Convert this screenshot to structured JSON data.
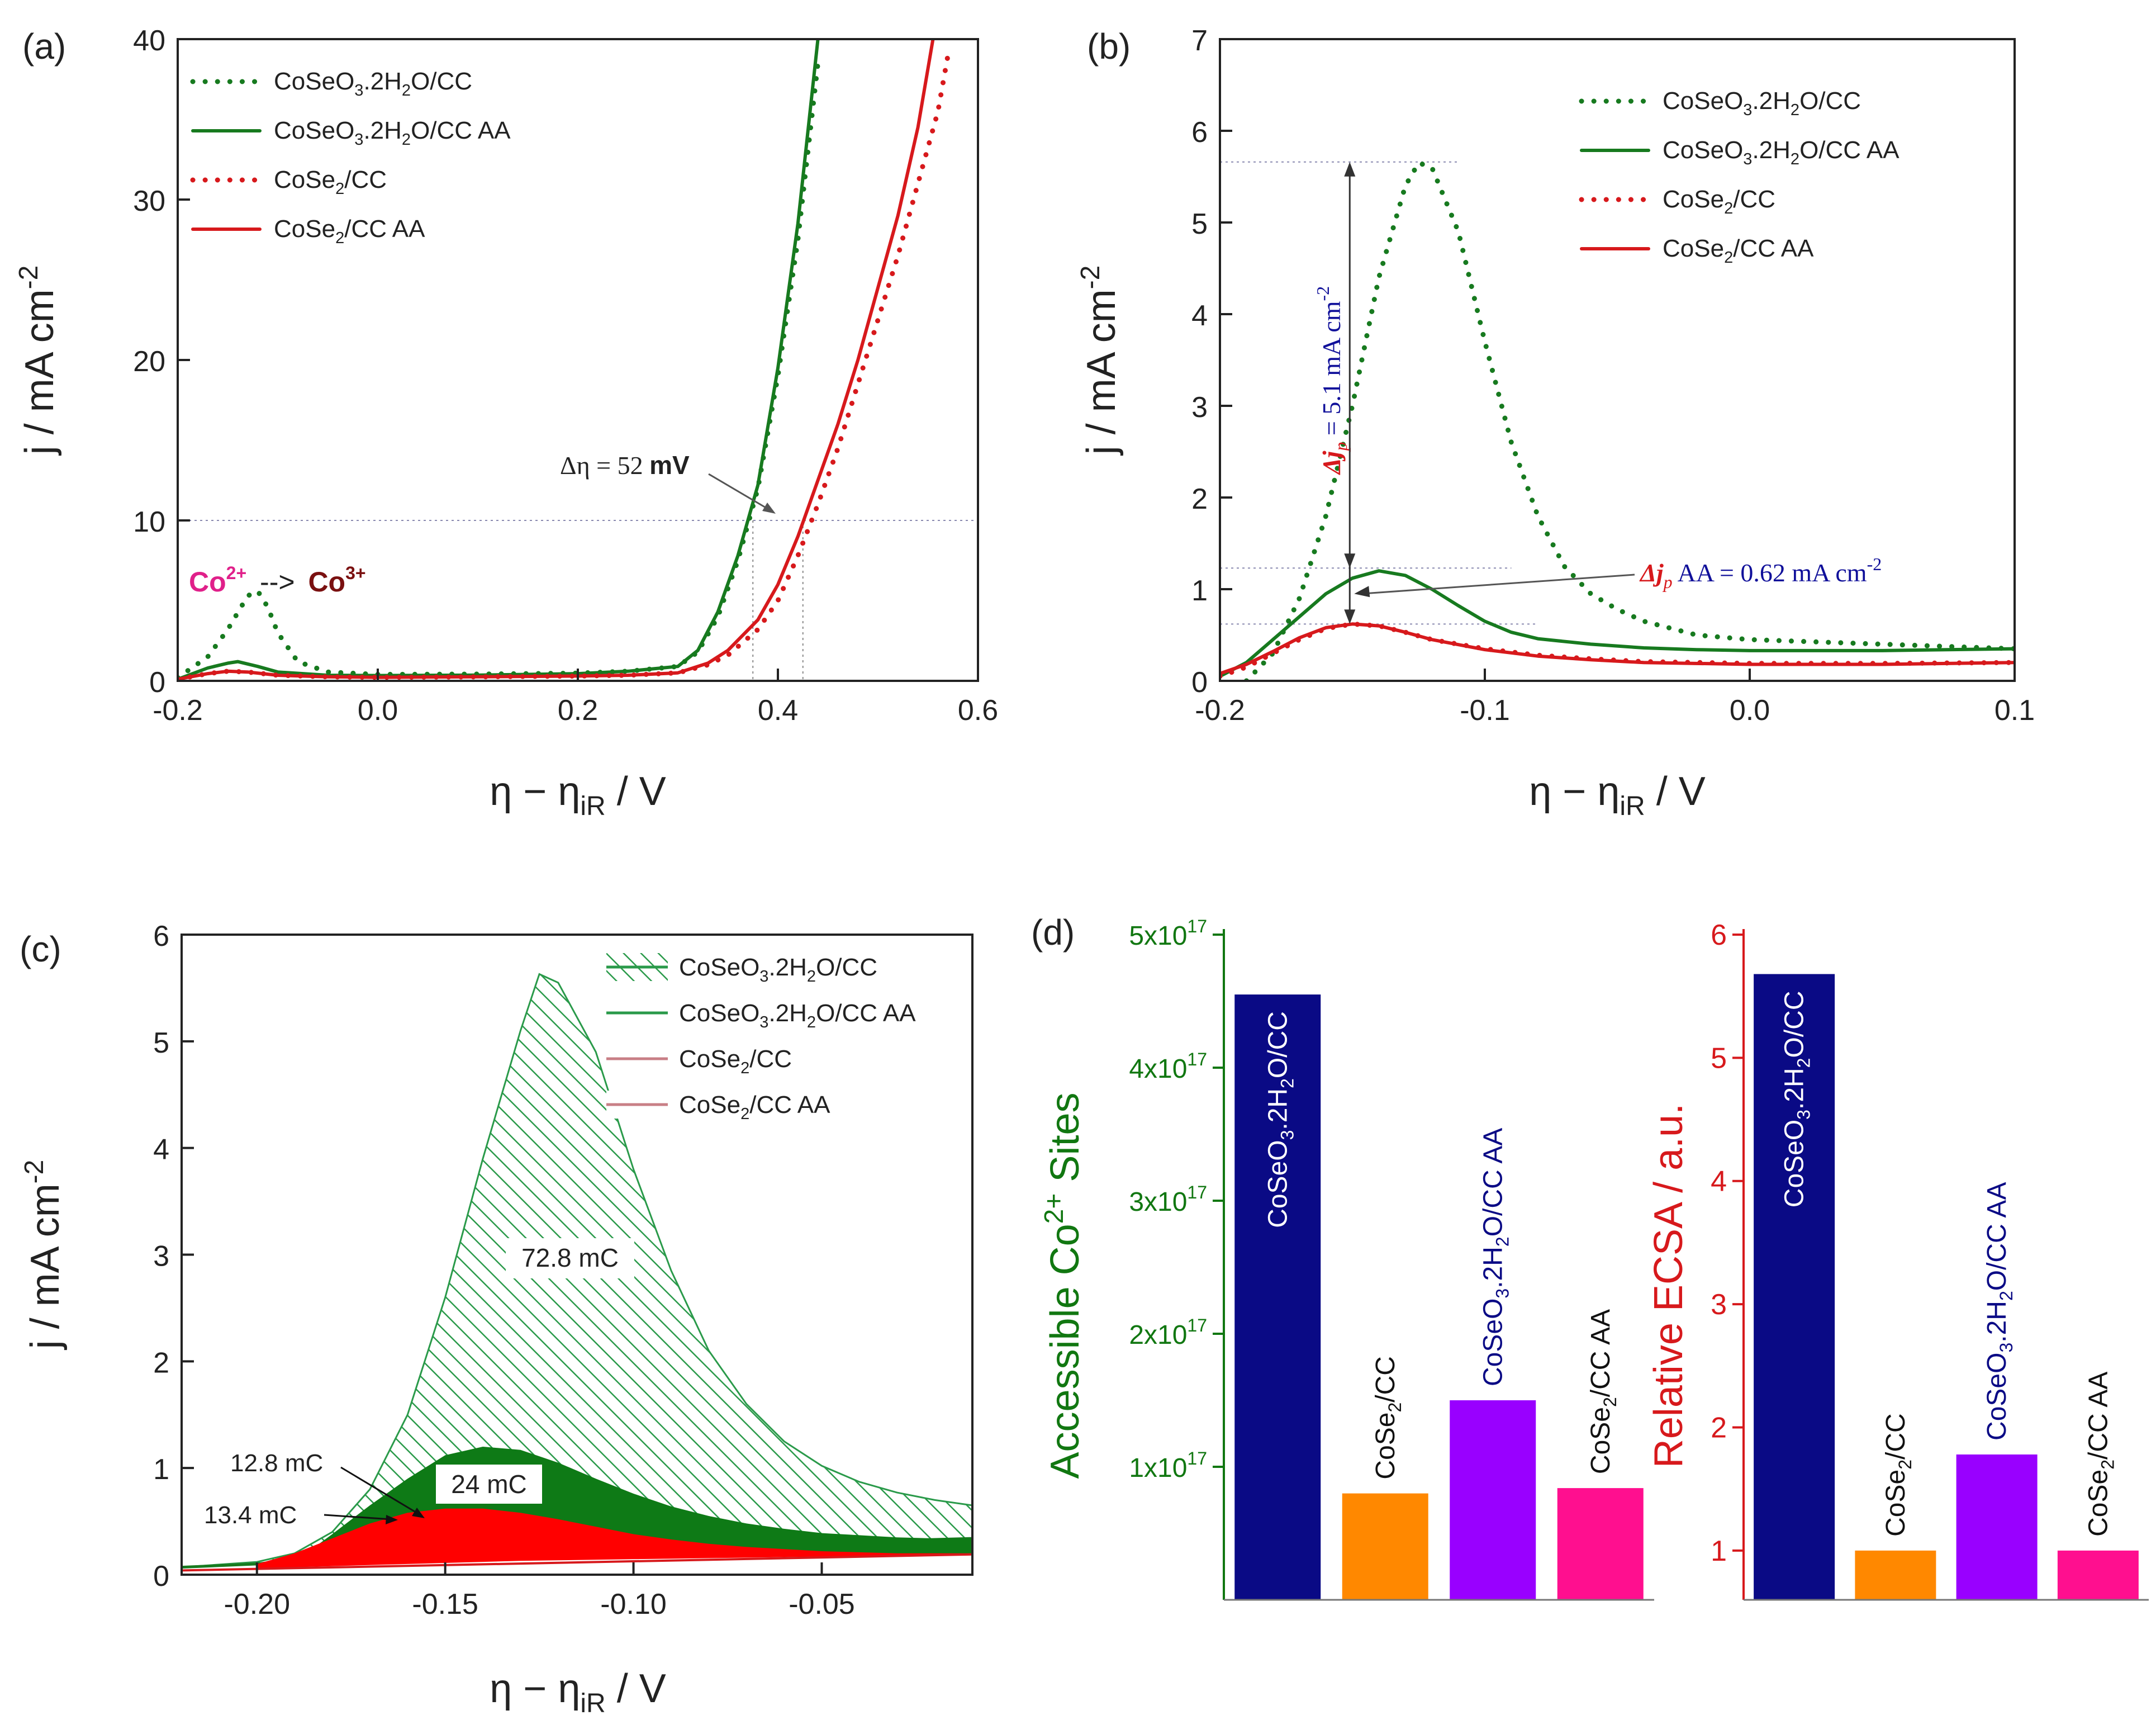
{
  "colors": {
    "green": "#177a1f",
    "red": "#d7191c",
    "navy": "#0a0a85",
    "purple": "#9900ff",
    "orange": "#ff8800",
    "pink": "#ff0f8f",
    "magenta": "#e0208a",
    "maroon": "#7a1010",
    "bar_green_axis": "#117711",
    "blue_text": "#10109a",
    "fill_red": "#ff0000",
    "fill_green": "#0e7a16",
    "hatch_green": "#2a9a4a",
    "legend_red_light": "#c87f86"
  },
  "chart_data": [
    {
      "type": "line",
      "panel_label": "(a)",
      "xlabel_main": "η − η",
      "xlabel_sub": "iR",
      "xlabel_unit": " / V",
      "ylabel": "j / mA cm",
      "ylabel_sup": "-2",
      "xlim": [
        -0.2,
        0.6
      ],
      "ylim": [
        0,
        40
      ],
      "xticks": [
        -0.2,
        0.0,
        0.2,
        0.4,
        0.6
      ],
      "xtick_labels": [
        "-0.2",
        "0.0",
        "0.2",
        "0.4",
        "0.6"
      ],
      "yticks": [
        0,
        10,
        20,
        30,
        40
      ],
      "ytick_labels": [
        "0",
        "10",
        "20",
        "30",
        "40"
      ],
      "legend_placement": "top-left",
      "series": [
        {
          "name": "CoSeO3·2H2O/CC",
          "legend": [
            "CoSeO",
            "3",
            ".2H",
            "2",
            "O/CC"
          ],
          "color": "green",
          "style": "dotted",
          "x": [
            -0.2,
            -0.17,
            -0.15,
            -0.13,
            -0.12,
            -0.11,
            -0.1,
            -0.08,
            -0.05,
            0.0,
            0.1,
            0.2,
            0.25,
            0.3,
            0.32,
            0.34,
            0.36,
            0.38,
            0.4,
            0.42,
            0.44
          ],
          "y": [
            0.2,
            1.5,
            3.2,
            5.3,
            5.6,
            4.6,
            3.0,
            1.2,
            0.55,
            0.4,
            0.42,
            0.48,
            0.6,
            0.9,
            1.8,
            4.0,
            7.5,
            12.0,
            19.0,
            27.5,
            38.5
          ]
        },
        {
          "name": "CoSeO3·2H2O/CC AA",
          "legend": [
            "CoSeO",
            "3",
            ".2H",
            "2",
            "O/CC AA"
          ],
          "color": "green",
          "style": "solid",
          "x": [
            -0.2,
            -0.17,
            -0.15,
            -0.14,
            -0.12,
            -0.1,
            -0.05,
            0.0,
            0.1,
            0.2,
            0.25,
            0.3,
            0.32,
            0.34,
            0.36,
            0.38,
            0.4,
            0.42,
            0.44
          ],
          "y": [
            0.1,
            0.8,
            1.1,
            1.2,
            0.9,
            0.55,
            0.35,
            0.33,
            0.36,
            0.45,
            0.6,
            0.9,
            1.9,
            4.3,
            7.8,
            12.2,
            19.5,
            28.5,
            40.0
          ]
        },
        {
          "name": "CoSe2/CC",
          "legend": [
            "CoSe",
            "2",
            "/CC"
          ],
          "color": "red",
          "style": "dotted",
          "x": [
            -0.2,
            -0.17,
            -0.15,
            -0.13,
            -0.1,
            -0.05,
            0.0,
            0.1,
            0.2,
            0.25,
            0.3,
            0.33,
            0.35,
            0.38,
            0.4,
            0.42,
            0.44,
            0.46,
            0.48,
            0.5,
            0.52,
            0.54,
            0.56,
            0.57
          ],
          "y": [
            0.1,
            0.45,
            0.6,
            0.55,
            0.35,
            0.25,
            0.22,
            0.25,
            0.3,
            0.35,
            0.5,
            1.0,
            1.6,
            3.2,
            5.0,
            7.8,
            11.0,
            14.5,
            18.5,
            22.5,
            26.5,
            31.0,
            35.5,
            39.0
          ]
        },
        {
          "name": "CoSe2/CC AA",
          "legend": [
            "CoSe",
            "2",
            "/CC AA"
          ],
          "color": "red",
          "style": "solid",
          "x": [
            -0.2,
            -0.17,
            -0.15,
            -0.13,
            -0.1,
            -0.05,
            0.0,
            0.1,
            0.2,
            0.25,
            0.3,
            0.33,
            0.35,
            0.38,
            0.4,
            0.42,
            0.44,
            0.46,
            0.48,
            0.5,
            0.52,
            0.54,
            0.555
          ],
          "y": [
            0.1,
            0.45,
            0.6,
            0.55,
            0.35,
            0.25,
            0.22,
            0.25,
            0.3,
            0.35,
            0.5,
            1.1,
            1.9,
            3.8,
            6.0,
            9.0,
            12.5,
            16.0,
            20.0,
            24.5,
            29.0,
            34.5,
            40.0
          ]
        }
      ],
      "guides": {
        "hline_y": 10,
        "vline_x": [
          0.375,
          0.425
        ],
        "hline_x_range": [
          -0.2,
          0.6
        ],
        "vline_y_top": 10
      },
      "annotations": {
        "delta_eta": "Δη = 52 ",
        "delta_eta_unit": "mV",
        "co_from": "Co",
        "co_from_sup": "2+",
        "co_arrow": "-->",
        "co_to": "Co",
        "co_to_sup": "3+"
      }
    },
    {
      "type": "line",
      "panel_label": "(b)",
      "xlabel_main": "η − η",
      "xlabel_sub": "iR",
      "xlabel_unit": " / V",
      "ylabel": "j / mA cm",
      "ylabel_sup": "-2",
      "xlim": [
        -0.2,
        0.1
      ],
      "ylim": [
        0,
        7
      ],
      "xticks": [
        -0.2,
        -0.1,
        0.0,
        0.1
      ],
      "xtick_labels": [
        "-0.2",
        "-0.1",
        "0.0",
        "0.1"
      ],
      "yticks": [
        0,
        1,
        2,
        3,
        4,
        5,
        6,
        7
      ],
      "ytick_labels": [
        "0",
        "1",
        "2",
        "3",
        "4",
        "5",
        "6",
        "7"
      ],
      "legend_placement": "top-right",
      "series": [
        {
          "name": "CoSeO3·2H2O/CC",
          "legend": [
            "CoSeO",
            "3",
            ".2H",
            "2",
            "O/CC"
          ],
          "color": "green",
          "style": "dotted",
          "x": [
            -0.19,
            -0.18,
            -0.17,
            -0.16,
            -0.15,
            -0.14,
            -0.13,
            -0.125,
            -0.12,
            -0.11,
            -0.1,
            -0.09,
            -0.08,
            -0.07,
            -0.06,
            -0.05,
            -0.04,
            -0.02,
            0.0,
            0.05,
            0.1
          ],
          "y": [
            0.0,
            0.3,
            0.9,
            1.8,
            3.0,
            4.4,
            5.4,
            5.65,
            5.6,
            4.9,
            3.7,
            2.6,
            1.8,
            1.25,
            0.95,
            0.78,
            0.65,
            0.5,
            0.45,
            0.4,
            0.35
          ]
        },
        {
          "name": "CoSeO3·2H2O/CC AA",
          "legend": [
            "CoSeO",
            "3",
            ".2H",
            "2",
            "O/CC AA"
          ],
          "color": "green",
          "style": "solid",
          "x": [
            -0.2,
            -0.19,
            -0.18,
            -0.17,
            -0.16,
            -0.15,
            -0.14,
            -0.13,
            -0.12,
            -0.11,
            -0.1,
            -0.09,
            -0.08,
            -0.06,
            -0.04,
            -0.02,
            0.0,
            0.05,
            0.1
          ],
          "y": [
            0.05,
            0.2,
            0.45,
            0.7,
            0.95,
            1.12,
            1.2,
            1.15,
            1.0,
            0.82,
            0.65,
            0.53,
            0.46,
            0.4,
            0.36,
            0.34,
            0.33,
            0.33,
            0.35
          ]
        },
        {
          "name": "CoSe2/CC",
          "legend": [
            "CoSe",
            "2",
            "/CC"
          ],
          "color": "red",
          "style": "dotted",
          "x": [
            -0.2,
            -0.19,
            -0.18,
            -0.17,
            -0.16,
            -0.15,
            -0.14,
            -0.13,
            -0.12,
            -0.1,
            -0.08,
            -0.06,
            -0.04,
            0.0,
            0.05,
            0.1
          ],
          "y": [
            0.05,
            0.15,
            0.3,
            0.45,
            0.57,
            0.62,
            0.6,
            0.53,
            0.45,
            0.35,
            0.28,
            0.24,
            0.21,
            0.19,
            0.19,
            0.2
          ]
        },
        {
          "name": "CoSe2/CC AA",
          "legend": [
            "CoSe",
            "2",
            "/CC AA"
          ],
          "color": "red",
          "style": "solid",
          "x": [
            -0.2,
            -0.19,
            -0.18,
            -0.17,
            -0.16,
            -0.15,
            -0.14,
            -0.13,
            -0.12,
            -0.1,
            -0.08,
            -0.06,
            -0.04,
            0.0,
            0.05,
            0.1
          ],
          "y": [
            0.08,
            0.18,
            0.32,
            0.47,
            0.58,
            0.62,
            0.6,
            0.53,
            0.45,
            0.34,
            0.27,
            0.23,
            0.2,
            0.18,
            0.18,
            0.2
          ]
        }
      ],
      "guides": {
        "hlines": [
          {
            "y": 5.66,
            "x_range": [
              -0.2,
              -0.11
            ]
          },
          {
            "y": 1.23,
            "x_range": [
              -0.2,
              -0.09
            ]
          },
          {
            "y": 0.62,
            "x_range": [
              -0.2,
              -0.08
            ]
          }
        ],
        "arrow_x": -0.151
      },
      "annotations": {
        "djp_prefix": "Δj",
        "djp_sub": "p",
        "djp_value": " = 5.1 mA cm",
        "djp_sup": "-2",
        "djpaa_prefix": "Δj",
        "djpaa_sub": "p",
        "djpaa_value": " AA = 0.62 mA cm",
        "djpaa_sup": "-2"
      }
    },
    {
      "type": "area",
      "panel_label": "(c)",
      "xlabel_main": "η − η",
      "xlabel_sub": "iR",
      "xlabel_unit": " / V",
      "ylabel": "j / mA cm",
      "ylabel_sup": "-2",
      "xlim": [
        -0.22,
        -0.01
      ],
      "ylim": [
        0,
        6
      ],
      "xticks": [
        -0.2,
        -0.15,
        -0.1,
        -0.05
      ],
      "xtick_labels": [
        "-0.20",
        "-0.15",
        "-0.10",
        "-0.05"
      ],
      "yticks": [
        0,
        1,
        2,
        3,
        4,
        5,
        6
      ],
      "ytick_labels": [
        "0",
        "1",
        "2",
        "3",
        "4",
        "5",
        "6"
      ],
      "legend_placement": "top-right",
      "series": [
        {
          "name": "CoSeO3·2H2O/CC",
          "legend": [
            "CoSeO",
            "3",
            ".2H",
            "2",
            "O/CC"
          ],
          "fill": "hatch_green",
          "x": [
            -0.22,
            -0.2,
            -0.19,
            -0.18,
            -0.17,
            -0.16,
            -0.15,
            -0.14,
            -0.13,
            -0.125,
            -0.12,
            -0.11,
            -0.1,
            -0.09,
            -0.08,
            -0.07,
            -0.06,
            -0.05,
            -0.04,
            -0.03,
            -0.02,
            -0.01
          ],
          "y": [
            0.07,
            0.12,
            0.2,
            0.4,
            0.8,
            1.5,
            2.6,
            3.9,
            5.1,
            5.63,
            5.55,
            4.9,
            3.8,
            2.85,
            2.1,
            1.6,
            1.25,
            1.02,
            0.87,
            0.77,
            0.7,
            0.65
          ],
          "base": [
            0.07,
            0.1,
            0.14,
            0.2,
            0.26,
            0.34,
            0.4,
            0.44,
            0.46,
            0.47,
            0.47,
            0.46,
            0.44,
            0.42,
            0.39,
            0.37,
            0.35,
            0.33,
            0.32,
            0.32,
            0.33,
            0.34
          ]
        },
        {
          "name": "CoSeO3·2H2O/CC AA",
          "legend": [
            "CoSeO",
            "3",
            ".2H",
            "2",
            "O/CC AA"
          ],
          "fill": "fill_green",
          "x": [
            -0.19,
            -0.18,
            -0.17,
            -0.16,
            -0.15,
            -0.14,
            -0.13,
            -0.12,
            -0.11,
            -0.1,
            -0.09,
            -0.08,
            -0.07,
            -0.06,
            -0.05,
            -0.04,
            -0.03,
            -0.02,
            -0.01
          ],
          "y": [
            0.12,
            0.38,
            0.65,
            0.9,
            1.12,
            1.2,
            1.17,
            1.05,
            0.9,
            0.76,
            0.64,
            0.55,
            0.48,
            0.43,
            0.39,
            0.37,
            0.35,
            0.34,
            0.34
          ],
          "base": [
            0.1,
            0.12,
            0.14,
            0.15,
            0.16,
            0.17,
            0.18,
            0.185,
            0.19,
            0.19,
            0.19,
            0.19,
            0.19,
            0.19,
            0.19,
            0.19,
            0.19,
            0.19,
            0.19
          ]
        },
        {
          "name": "CoSe2/CC",
          "legend": [
            "CoSe",
            "2",
            "/CC"
          ],
          "fill": "fill_red",
          "x": [
            -0.2,
            -0.19,
            -0.18,
            -0.17,
            -0.16,
            -0.15,
            -0.14,
            -0.13,
            -0.12,
            -0.11,
            -0.1,
            -0.09,
            -0.08,
            -0.07,
            -0.06,
            -0.05,
            -0.04,
            -0.03,
            -0.02,
            -0.01
          ],
          "y": [
            0.1,
            0.2,
            0.34,
            0.48,
            0.58,
            0.62,
            0.62,
            0.58,
            0.52,
            0.45,
            0.38,
            0.33,
            0.29,
            0.26,
            0.24,
            0.22,
            0.21,
            0.2,
            0.2,
            0.2
          ],
          "base": [
            0.06,
            0.07,
            0.08,
            0.09,
            0.1,
            0.11,
            0.12,
            0.13,
            0.135,
            0.14,
            0.145,
            0.15,
            0.155,
            0.16,
            0.165,
            0.17,
            0.175,
            0.18,
            0.185,
            0.19
          ]
        },
        {
          "name": "CoSe2/CC AA",
          "legend": [
            "CoSe",
            "2",
            "/CC AA"
          ],
          "fill": "legend_red_light",
          "x": [],
          "y": []
        }
      ],
      "annotations": {
        "big": "72.8 mC",
        "mid": "24 mC",
        "small1": "12.8 mC",
        "small2": "13.4 mC"
      }
    },
    {
      "type": "bar",
      "panel_label": "(d)",
      "left": {
        "ylabel_pre": "Accessible Co",
        "ylabel_sup": "2+",
        "ylabel_post": " Sites",
        "ylim": [
          0,
          5e+17
        ],
        "yticks": [
          1e+17,
          2e+17,
          3e+17,
          4e+17,
          5e+17
        ],
        "ytick_base": [
          "1x10",
          "2x10",
          "3x10",
          "4x10",
          "5x10"
        ],
        "ytick_exp": "17",
        "categories": [
          "CoSeO3·2H2O/CC",
          "CoSe2/CC",
          "CoSeO3·2H2O/CC AA",
          "CoSe2/CC AA"
        ],
        "labels": [
          [
            "CoSeO",
            "3",
            ".2H",
            "2",
            "O/CC"
          ],
          [
            "CoSe",
            "2",
            "/CC"
          ],
          [
            "CoSeO",
            "3",
            ".2H",
            "2",
            "O/CC AA"
          ],
          [
            "CoSe",
            "2",
            "/CC AA"
          ]
        ],
        "values": [
          4.55e+17,
          8e+16,
          1.5e+17,
          8.4e+16
        ],
        "colors": [
          "navy",
          "orange",
          "purple",
          "pink"
        ]
      },
      "right": {
        "ylabel": "Relative ECSA / a.u.",
        "ylim": [
          0.6,
          6
        ],
        "yticks": [
          1,
          2,
          3,
          4,
          5,
          6
        ],
        "ytick_labels": [
          "1",
          "2",
          "3",
          "4",
          "5",
          "6"
        ],
        "categories": [
          "CoSeO3·2H2O/CC",
          "CoSe2/CC",
          "CoSeO3·2H2O/CC AA",
          "CoSe2/CC AA"
        ],
        "labels": [
          [
            "CoSeO",
            "3",
            ".2H",
            "2",
            "O/CC"
          ],
          [
            "CoSe",
            "2",
            "/CC"
          ],
          [
            "CoSeO",
            "3",
            ".2H",
            "2",
            "O/CC AA"
          ],
          [
            "CoSe",
            "2",
            "/CC AA"
          ]
        ],
        "values": [
          5.68,
          1.0,
          1.78,
          1.0
        ],
        "colors": [
          "navy",
          "orange",
          "purple",
          "pink"
        ]
      }
    }
  ]
}
